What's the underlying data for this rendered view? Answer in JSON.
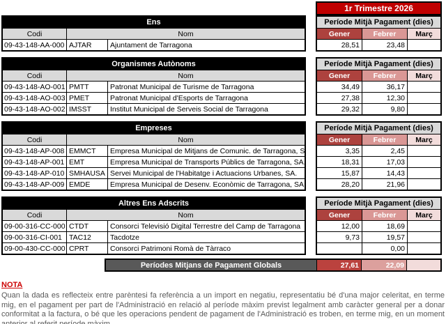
{
  "quarter_title": "1r Trimestre 2026",
  "labels": {
    "period": "Període Mitjà Pagament (dies)",
    "codi": "Codi",
    "nom": "Nom",
    "months": [
      "Gener",
      "Febrer",
      "Març"
    ]
  },
  "sections": [
    {
      "title": "Ens",
      "rows": [
        {
          "codi": "09-43-148-AA-000",
          "sigla": "AJTAR",
          "nom": "Ajuntament de Tarragona",
          "gener": "28,51",
          "febrer": "23,48",
          "marc": ""
        }
      ]
    },
    {
      "title": "Organismes Autònoms",
      "rows": [
        {
          "codi": "09-43-148-AO-001",
          "sigla": "PMTT",
          "nom": "Patronat Municipal de Turisme de Tarragona",
          "gener": "34,49",
          "febrer": "36,17",
          "marc": ""
        },
        {
          "codi": "09-43-148-AO-003",
          "sigla": "PMET",
          "nom": "Patronat Municipal d'Esports de Tarragona",
          "gener": "27,38",
          "febrer": "12,30",
          "marc": ""
        },
        {
          "codi": "09-43-148-AO-002",
          "sigla": "IMSST",
          "nom": "Institut Municipal de Serveis Social de Tarragona",
          "gener": "29,32",
          "febrer": "9,80",
          "marc": ""
        }
      ]
    },
    {
      "title": "Empreses",
      "rows": [
        {
          "codi": "09-43-148-AP-008",
          "sigla": "EMMCT",
          "nom": "Empresa Municipal de Mitjans de Comunic. de Tarragona, SA.",
          "gener": "3,35",
          "febrer": "2,45",
          "marc": ""
        },
        {
          "codi": "09-43-148-AP-001",
          "sigla": "EMT",
          "nom": "Empresa Municipal de Transports Públics de Tarragona, SA.",
          "gener": "18,31",
          "febrer": "17,03",
          "marc": ""
        },
        {
          "codi": "09-43-148-AP-010",
          "sigla": "SMHAUSA",
          "nom": "Servei Municipal de l'Habitatge i Actuacions Urbanes, SA.",
          "gener": "15,87",
          "febrer": "14,43",
          "marc": ""
        },
        {
          "codi": "09-43-148-AP-009",
          "sigla": "EMDE",
          "nom": "Empresa Municipal de Desenv. Econòmic de Tarragona, SA.",
          "gener": "28,20",
          "febrer": "21,96",
          "marc": ""
        }
      ]
    },
    {
      "title": "Altres Ens Adscrits",
      "rows": [
        {
          "codi": "09-00-316-CC-000",
          "sigla": "CTDT",
          "nom": "Consorci Televisió Digital Terrestre del Camp de Tarragona",
          "gener": "12,00",
          "febrer": "18,69",
          "marc": ""
        },
        {
          "codi": "09-00-316-CI-001",
          "sigla": "TAC12",
          "nom": "Tacdotze",
          "gener": "9,73",
          "febrer": "19,57",
          "marc": ""
        },
        {
          "codi": "09-00-430-CC-000",
          "sigla": "CPRT",
          "nom": "Consorci Patrimoni Romà de Tàrraco",
          "gener": "",
          "febrer": "0,00",
          "marc": ""
        }
      ]
    }
  ],
  "globals": {
    "label": "Períodes Mitjans de Pagament Globals",
    "gener": "27,61",
    "febrer": "22,09",
    "marc": ""
  },
  "note": {
    "title": "NOTA",
    "body": "Quan la dada es reflecteix entre parèntesi fa referència a un import en negatiu, representatiu bé d'una major celeritat, en terme mig, en el pagament per part de l'Administració en relació al període màxim previst legalment amb caràcter general per a donar conformitat a la factura, o bé que les operacions pendent de pagament de l'Administració es troben, en terme mig, en un moment anterior al referit període màxim."
  },
  "colors": {
    "quarter_bg": "#C00000",
    "section_header_bg": "#000000",
    "subheader_bg": "#D9D9D9",
    "gener_bg": "#AD423E",
    "febrer_bg": "#DA9795",
    "marc_bg": "#F2DCDB",
    "globals_label_bg": "#595959",
    "globals_gener_bg": "#BB423E",
    "globals_febrer_bg": "#DCA09D",
    "note_title_color": "#CC0000"
  }
}
